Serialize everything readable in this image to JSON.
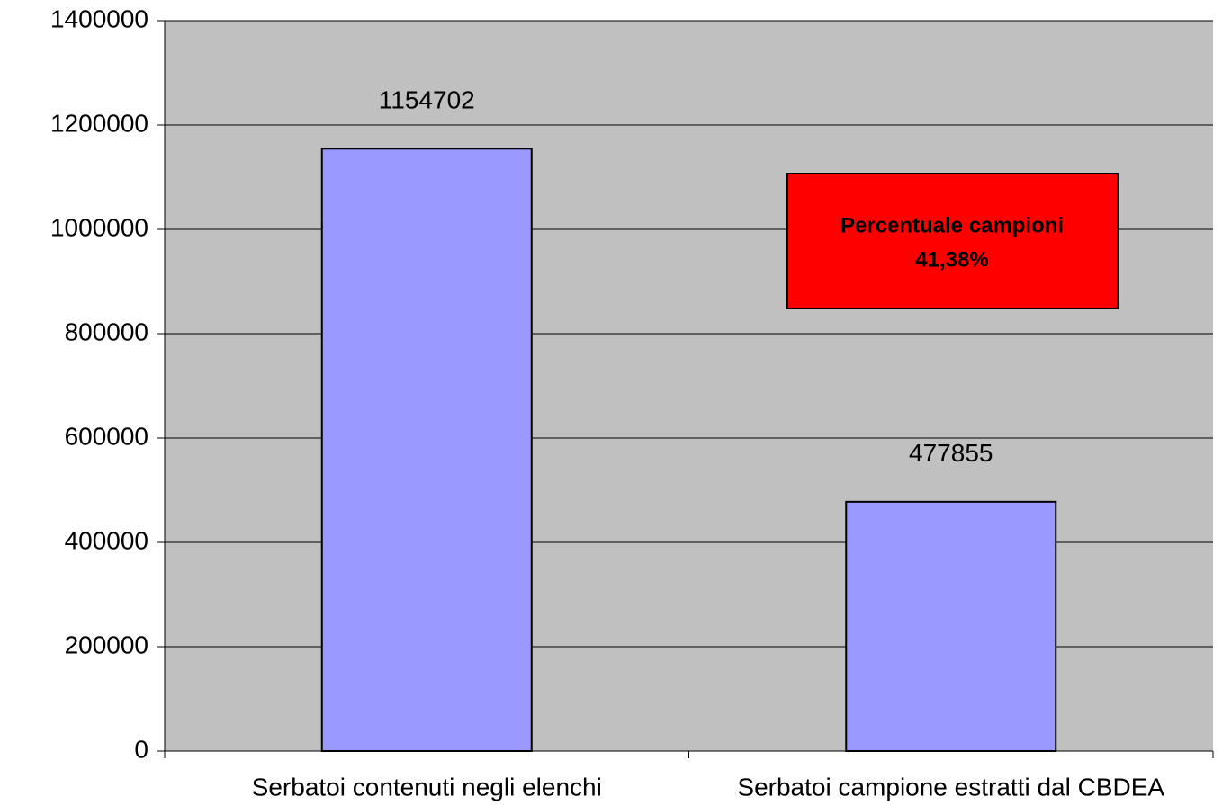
{
  "chart_data": {
    "type": "bar",
    "categories": [
      "Serbatoi contenuti negli elenchi",
      "Serbatoi campione estratti dal CBDEA"
    ],
    "values": [
      1154702,
      477855
    ],
    "color": "#9999ff",
    "ylim": [
      0,
      1400000
    ],
    "yticks": [
      0,
      200000,
      400000,
      600000,
      800000,
      1000000,
      1200000,
      1400000
    ],
    "grid": true,
    "annotation": [
      "Percentuale campioni",
      "41,38%"
    ]
  }
}
